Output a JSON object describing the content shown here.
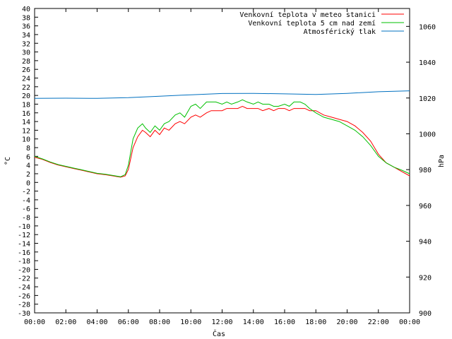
{
  "chart_data": {
    "type": "line",
    "title": "",
    "xlabel": "Čas",
    "ylabel": "°C",
    "y2label": "hPa",
    "x_ticks": [
      "00:00",
      "02:00",
      "04:00",
      "06:00",
      "08:00",
      "10:00",
      "12:00",
      "14:00",
      "16:00",
      "18:00",
      "20:00",
      "22:00",
      "00:00"
    ],
    "xlim": [
      0,
      24
    ],
    "ylim": [
      -30,
      40
    ],
    "y_ticks": [
      -30,
      -28,
      -26,
      -24,
      -22,
      -20,
      -18,
      -16,
      -14,
      -12,
      -10,
      -8,
      -6,
      -4,
      -2,
      0,
      2,
      4,
      6,
      8,
      10,
      12,
      14,
      16,
      18,
      20,
      22,
      24,
      26,
      28,
      30,
      32,
      34,
      36,
      38,
      40
    ],
    "y2lim": [
      900,
      1070
    ],
    "y2_ticks": [
      900,
      920,
      940,
      960,
      980,
      1000,
      1020,
      1040,
      1060
    ],
    "grid": false,
    "legend_position": "top-right",
    "series": [
      {
        "name": "Venkovní teplota v meteo stanici",
        "color": "#ff0000",
        "axis": "left",
        "x": [
          0,
          0.5,
          1,
          1.5,
          2,
          2.5,
          3,
          3.5,
          4,
          4.5,
          5,
          5.5,
          5.8,
          6,
          6.3,
          6.6,
          6.9,
          7.1,
          7.4,
          7.7,
          8,
          8.3,
          8.6,
          9,
          9.3,
          9.6,
          10,
          10.3,
          10.6,
          11,
          11.3,
          11.6,
          12,
          12.3,
          12.6,
          13,
          13.3,
          13.6,
          14,
          14.3,
          14.6,
          15,
          15.3,
          15.6,
          16,
          16.3,
          16.6,
          17,
          17.3,
          17.6,
          18,
          18.5,
          19,
          19.5,
          20,
          20.5,
          21,
          21.5,
          22,
          22.5,
          23,
          23.5,
          24
        ],
        "y": [
          5.8,
          5.3,
          4.6,
          4.0,
          3.6,
          3.2,
          2.8,
          2.4,
          2.0,
          1.8,
          1.5,
          1.2,
          1.5,
          3.0,
          8.0,
          10.5,
          12.0,
          11.5,
          10.5,
          12.0,
          11.0,
          12.5,
          12.0,
          13.5,
          14.0,
          13.5,
          15.0,
          15.5,
          15.0,
          16.0,
          16.5,
          16.5,
          16.5,
          17.0,
          17.0,
          17.0,
          17.5,
          17.0,
          17.0,
          17.0,
          16.5,
          17.0,
          16.5,
          17.0,
          17.0,
          16.5,
          17.0,
          17.0,
          17.0,
          16.5,
          16.5,
          15.5,
          15.0,
          14.5,
          14.0,
          13.0,
          11.5,
          9.5,
          6.5,
          4.5,
          3.5,
          2.5,
          1.5
        ]
      },
      {
        "name": "Venkovní teplota 5 cm nad zemí",
        "color": "#00c000",
        "axis": "left",
        "x": [
          0,
          0.5,
          1,
          1.5,
          2,
          2.5,
          3,
          3.5,
          4,
          4.5,
          5,
          5.5,
          5.8,
          6,
          6.3,
          6.6,
          6.9,
          7.1,
          7.4,
          7.7,
          8,
          8.3,
          8.6,
          9,
          9.3,
          9.6,
          10,
          10.3,
          10.6,
          11,
          11.3,
          11.6,
          12,
          12.3,
          12.6,
          13,
          13.3,
          13.6,
          14,
          14.3,
          14.6,
          15,
          15.3,
          15.6,
          16,
          16.3,
          16.6,
          17,
          17.3,
          17.6,
          18,
          18.5,
          19,
          19.5,
          20,
          20.5,
          21,
          21.5,
          22,
          22.5,
          23,
          23.5,
          24
        ],
        "y": [
          6.0,
          5.4,
          4.7,
          4.1,
          3.7,
          3.3,
          2.9,
          2.5,
          2.1,
          1.9,
          1.6,
          1.3,
          1.8,
          4.0,
          10.0,
          12.5,
          13.5,
          12.5,
          11.5,
          13.0,
          12.0,
          13.5,
          14.0,
          15.5,
          16.0,
          15.0,
          17.5,
          18.0,
          17.0,
          18.5,
          18.5,
          18.5,
          18.0,
          18.5,
          18.0,
          18.5,
          19.0,
          18.5,
          18.0,
          18.5,
          18.0,
          18.0,
          17.5,
          17.5,
          18.0,
          17.5,
          18.5,
          18.5,
          18.0,
          17.0,
          16.0,
          15.0,
          14.5,
          14.0,
          13.0,
          12.0,
          10.5,
          8.5,
          6.0,
          4.5,
          3.5,
          2.8,
          2.0
        ]
      },
      {
        "name": "Atmosférický tlak",
        "color": "#0070c0",
        "axis": "right",
        "x": [
          0,
          2,
          4,
          6,
          8,
          10,
          12,
          14,
          16,
          18,
          20,
          22,
          24
        ],
        "y": [
          1019.8,
          1019.9,
          1019.8,
          1020.2,
          1021.0,
          1021.8,
          1022.5,
          1022.6,
          1022.3,
          1022.0,
          1022.6,
          1023.5,
          1024.0
        ]
      }
    ]
  }
}
